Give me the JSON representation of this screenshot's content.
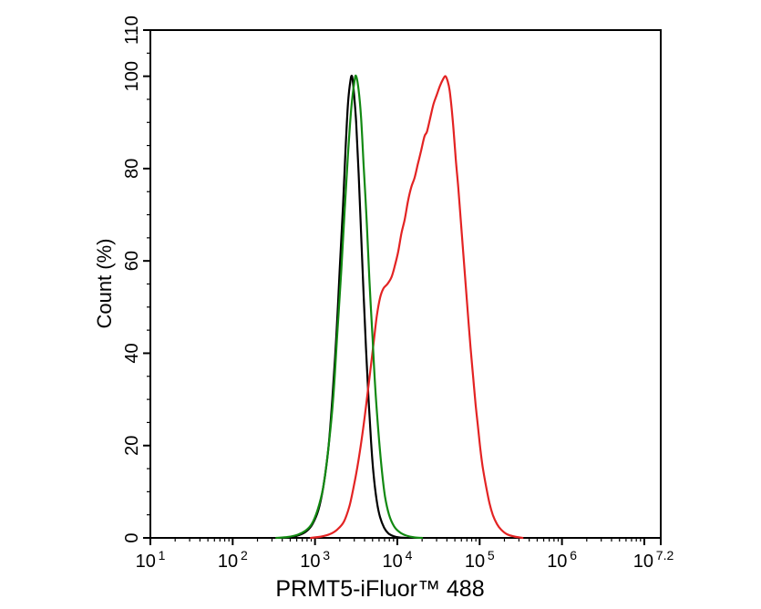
{
  "chart_data": {
    "type": "line",
    "variant": "flow-cytometry-histogram",
    "title": "",
    "xlabel": "PRMT5-iFluor™ 488",
    "ylabel": "Count  (%)",
    "x_scale": "log10",
    "x_domain_log": [
      1,
      7.2
    ],
    "ylim": [
      0,
      110
    ],
    "grid": false,
    "legend": "none",
    "background_color": "#ffffff",
    "axis_color": "#000000",
    "y_major_ticks": [
      0,
      20,
      40,
      60,
      80,
      100,
      110
    ],
    "y_minor_step": 5,
    "x_major_tick_logs": [
      1,
      2,
      3,
      4,
      5,
      6,
      7,
      7.2
    ],
    "x_minor_tick_decades": [
      1,
      2,
      3,
      4,
      5,
      6
    ],
    "x_tick_labels": [
      {
        "log": 1,
        "base": "10",
        "exp": "1",
        "dx": 0
      },
      {
        "log": 2,
        "base": "10",
        "exp": "2",
        "dx": 0
      },
      {
        "log": 3,
        "base": "10",
        "exp": "3",
        "dx": 0
      },
      {
        "log": 4,
        "base": "10",
        "exp": "4",
        "dx": 0
      },
      {
        "log": 5,
        "base": "10",
        "exp": "5",
        "dx": 0
      },
      {
        "log": 6,
        "base": "10",
        "exp": "6",
        "dx": 0
      },
      {
        "log": 7.2,
        "base": "10",
        "exp": "7.2",
        "dx": -8
      }
    ],
    "series": [
      {
        "name": "black-curve",
        "description": "narrow peak centered near 2.8e3, height 100%",
        "color": "#000000",
        "stroke_width": 2.2,
        "points_log10x_pct": [
          [
            2.6,
            0
          ],
          [
            2.72,
            0.2
          ],
          [
            2.82,
            0.7
          ],
          [
            2.9,
            1.5
          ],
          [
            2.97,
            3
          ],
          [
            3.04,
            6
          ],
          [
            3.1,
            11
          ],
          [
            3.16,
            19
          ],
          [
            3.21,
            30
          ],
          [
            3.26,
            44
          ],
          [
            3.3,
            58
          ],
          [
            3.34,
            72
          ],
          [
            3.37,
            84
          ],
          [
            3.4,
            94
          ],
          [
            3.43,
            99
          ],
          [
            3.45,
            100
          ],
          [
            3.47,
            97
          ],
          [
            3.5,
            90
          ],
          [
            3.53,
            79
          ],
          [
            3.56,
            66
          ],
          [
            3.59,
            53
          ],
          [
            3.62,
            41
          ],
          [
            3.65,
            30
          ],
          [
            3.68,
            21
          ],
          [
            3.71,
            14
          ],
          [
            3.75,
            8
          ],
          [
            3.79,
            4.5
          ],
          [
            3.84,
            2.2
          ],
          [
            3.89,
            1
          ],
          [
            3.95,
            0.4
          ],
          [
            4.02,
            0.1
          ],
          [
            4.1,
            0
          ]
        ]
      },
      {
        "name": "red-curve",
        "description": "broad noisy peak centered near 3.8e4, height 100%, shoulder near 55%",
        "color": "#e32323",
        "stroke_width": 2.2,
        "points_log10x_pct": [
          [
            2.95,
            0
          ],
          [
            3.08,
            0.3
          ],
          [
            3.18,
            0.8
          ],
          [
            3.27,
            1.8
          ],
          [
            3.35,
            3.5
          ],
          [
            3.42,
            7
          ],
          [
            3.48,
            12
          ],
          [
            3.53,
            17
          ],
          [
            3.58,
            23
          ],
          [
            3.63,
            30
          ],
          [
            3.67,
            36
          ],
          [
            3.71,
            42
          ],
          [
            3.75,
            48
          ],
          [
            3.79,
            52
          ],
          [
            3.83,
            54
          ],
          [
            3.88,
            55
          ],
          [
            3.93,
            56.5
          ],
          [
            3.97,
            59
          ],
          [
            4.01,
            62
          ],
          [
            4.05,
            66
          ],
          [
            4.09,
            69
          ],
          [
            4.13,
            73
          ],
          [
            4.17,
            76
          ],
          [
            4.21,
            78
          ],
          [
            4.25,
            81
          ],
          [
            4.29,
            84
          ],
          [
            4.33,
            87
          ],
          [
            4.36,
            88
          ],
          [
            4.4,
            91
          ],
          [
            4.44,
            94
          ],
          [
            4.48,
            96
          ],
          [
            4.52,
            98
          ],
          [
            4.56,
            99.5
          ],
          [
            4.585,
            100
          ],
          [
            4.61,
            99
          ],
          [
            4.635,
            97
          ],
          [
            4.66,
            93
          ],
          [
            4.685,
            88
          ],
          [
            4.71,
            82
          ],
          [
            4.74,
            76
          ],
          [
            4.77,
            69
          ],
          [
            4.8,
            62
          ],
          [
            4.83,
            55
          ],
          [
            4.86,
            48
          ],
          [
            4.89,
            41
          ],
          [
            4.92,
            35
          ],
          [
            4.95,
            29
          ],
          [
            4.98,
            24
          ],
          [
            5.01,
            19
          ],
          [
            5.04,
            15
          ],
          [
            5.08,
            11
          ],
          [
            5.12,
            7.5
          ],
          [
            5.16,
            5
          ],
          [
            5.21,
            3
          ],
          [
            5.26,
            1.8
          ],
          [
            5.33,
            0.8
          ],
          [
            5.42,
            0.3
          ],
          [
            5.52,
            0
          ]
        ]
      },
      {
        "name": "green-curve",
        "description": "narrow peak centered near 3.2e3, height 100%, slightly right of and wider than black",
        "color": "#128912",
        "stroke_width": 2.2,
        "points_log10x_pct": [
          [
            2.53,
            0
          ],
          [
            2.67,
            0.2
          ],
          [
            2.79,
            0.7
          ],
          [
            2.88,
            1.5
          ],
          [
            2.96,
            3
          ],
          [
            3.03,
            6
          ],
          [
            3.1,
            11
          ],
          [
            3.16,
            19
          ],
          [
            3.22,
            30
          ],
          [
            3.27,
            44
          ],
          [
            3.32,
            58
          ],
          [
            3.36,
            71
          ],
          [
            3.4,
            83
          ],
          [
            3.44,
            93
          ],
          [
            3.48,
            99
          ],
          [
            3.5,
            100
          ],
          [
            3.53,
            97
          ],
          [
            3.56,
            91
          ],
          [
            3.59,
            81
          ],
          [
            3.63,
            68
          ],
          [
            3.66,
            56
          ],
          [
            3.7,
            43
          ],
          [
            3.73,
            33
          ],
          [
            3.77,
            23
          ],
          [
            3.81,
            15
          ],
          [
            3.85,
            9
          ],
          [
            3.9,
            5
          ],
          [
            3.96,
            2.5
          ],
          [
            4.03,
            1.2
          ],
          [
            4.11,
            0.5
          ],
          [
            4.21,
            0.1
          ],
          [
            4.3,
            0
          ]
        ]
      }
    ]
  }
}
